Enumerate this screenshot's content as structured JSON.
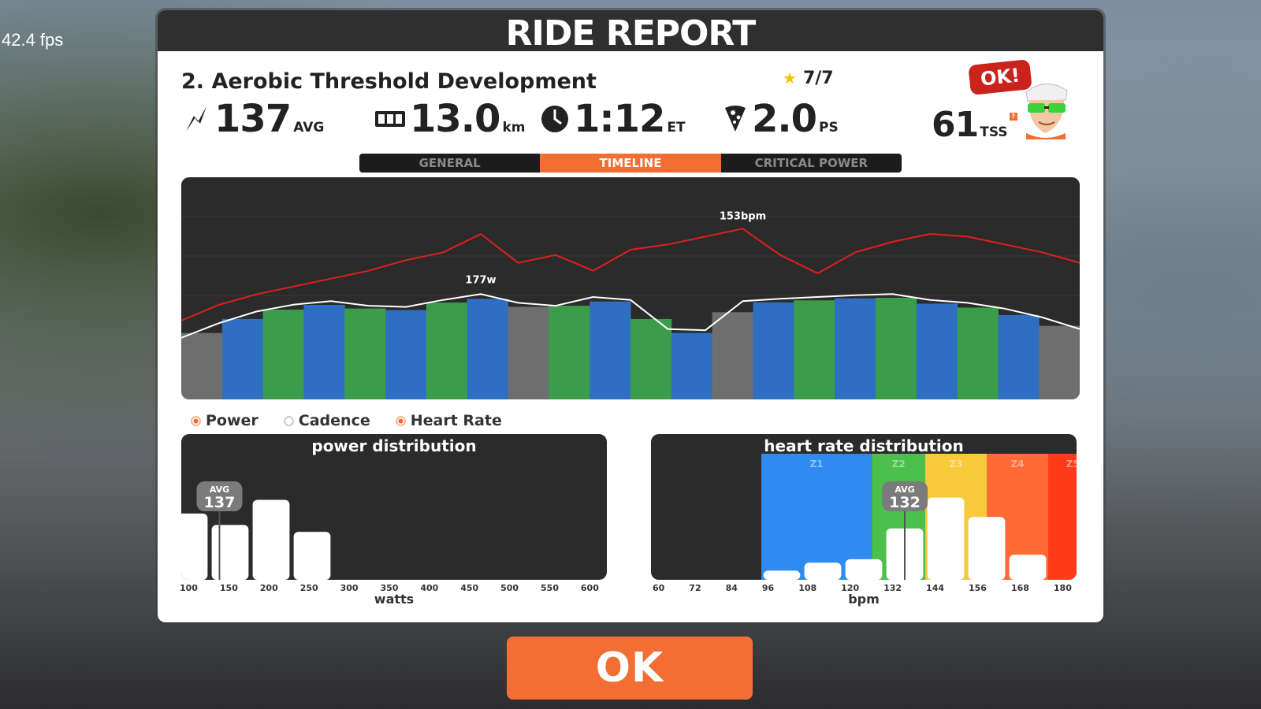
{
  "fps_label": "42.4 fps",
  "report": {
    "title": "RIDE REPORT",
    "workout_name": "2. Aerobic Threshold Development",
    "stars": "7/7",
    "stats": {
      "power_value": "137",
      "power_unit": "AVG",
      "distance_value": "13.0",
      "distance_unit": "km",
      "time_value": "1:12",
      "time_unit": "ET",
      "pizza_value": "2.0",
      "pizza_unit": "PS",
      "tss_value": "61",
      "tss_unit": "TSS"
    },
    "ok_bubble": "OK!",
    "tabs": [
      "GENERAL",
      "TIMELINE",
      "CRITICAL POWER"
    ],
    "active_tab": "TIMELINE"
  },
  "legend": {
    "power": "Power",
    "cadence": "Cadence",
    "heart_rate": "Heart Rate"
  },
  "colors": {
    "accent": "#f26e33",
    "heart_rate_line": "#e0201d",
    "power_line": "#ffffff",
    "zone_gray": "#6e6e6e",
    "zone_blue": "#2e6fc4",
    "zone_green": "#3b9c4a"
  },
  "ok_button": "OK",
  "chart_data": [
    {
      "type": "line",
      "title": "",
      "series": [
        {
          "name": "Heart Rate",
          "x": [
            0,
            3,
            6,
            9,
            12,
            15,
            18,
            21,
            24,
            27,
            30,
            33,
            36,
            39,
            42,
            45,
            48,
            51,
            54,
            57,
            60,
            63,
            66,
            69,
            72
          ],
          "values": [
            118,
            124,
            128,
            131,
            134,
            137,
            141,
            144,
            151,
            140,
            143,
            137,
            145,
            147,
            150,
            153,
            143,
            136,
            144,
            148,
            151,
            150,
            147,
            144,
            140
          ],
          "peak_label": "153bpm"
        },
        {
          "name": "Power",
          "x": [
            0,
            3,
            6,
            9,
            12,
            15,
            18,
            21,
            24,
            27,
            30,
            33,
            36,
            39,
            42,
            45,
            48,
            51,
            54,
            57,
            60,
            63,
            66,
            69,
            72
          ],
          "values": [
            95,
            120,
            140,
            152,
            158,
            150,
            148,
            160,
            170,
            155,
            150,
            165,
            160,
            110,
            108,
            158,
            162,
            165,
            168,
            170,
            160,
            155,
            145,
            130,
            110
          ],
          "peak_label": "177w"
        }
      ],
      "zones": [
        "gray",
        "blue",
        "green",
        "blue",
        "green",
        "blue",
        "green",
        "blue",
        "gray",
        "green",
        "blue",
        "green",
        "blue",
        "gray",
        "blue",
        "green",
        "blue",
        "green",
        "blue",
        "green",
        "blue",
        "gray"
      ]
    },
    {
      "type": "bar",
      "title": "power distribution",
      "xlabel": "watts",
      "categories": [
        "100",
        "150",
        "200",
        "250",
        "300",
        "350",
        "400",
        "450",
        "500",
        "550",
        "600"
      ],
      "values": [
        58,
        48,
        70,
        42,
        0,
        0,
        0,
        0,
        0,
        0,
        0
      ],
      "avg_label": "AVG",
      "avg_value": "137"
    },
    {
      "type": "bar",
      "title": "heart rate distribution",
      "xlabel": "bpm",
      "categories": [
        "60",
        "72",
        "84",
        "96",
        "108",
        "120",
        "132",
        "144",
        "156",
        "168",
        "180"
      ],
      "values": [
        0,
        0,
        0,
        8,
        15,
        18,
        45,
        72,
        55,
        22,
        0
      ],
      "zones": [
        "Z1",
        "Z2",
        "Z3",
        "Z4",
        "Z5"
      ],
      "avg_label": "AVG",
      "avg_value": "132"
    }
  ]
}
